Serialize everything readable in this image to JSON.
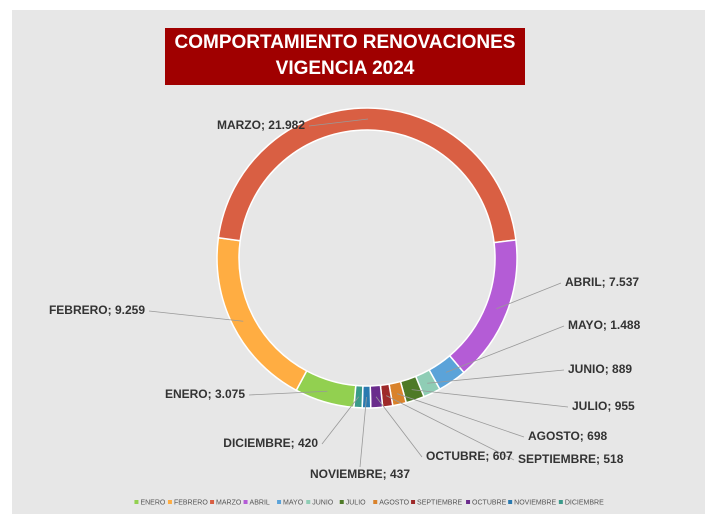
{
  "chart_data": {
    "type": "pie",
    "title_lines": [
      "COMPORTAMIENTO RENOVACIONES",
      "VIGENCIA 2024"
    ],
    "categories": [
      "ENERO",
      "FEBRERO",
      "MARZO",
      "ABRIL",
      "MAYO",
      "JUNIO",
      "JULIO",
      "AGOSTO",
      "SEPTIEMBRE",
      "OCTUBRE",
      "NOVIEMBRE",
      "DICIEMBRE"
    ],
    "values": [
      3075,
      9259,
      21982,
      7537,
      1488,
      889,
      955,
      698,
      518,
      607,
      437,
      420
    ],
    "value_labels": [
      "3.075",
      "9.259",
      "21.982",
      "7.537",
      "1.488",
      "889",
      "955",
      "698",
      "518",
      "607",
      "437",
      "420"
    ],
    "label_separator": "; ",
    "colors": [
      "#92d050",
      "#ffad42",
      "#d95f43",
      "#b45cd6",
      "#5ba3d9",
      "#8fcdb5",
      "#4e7a27",
      "#d9822b",
      "#9e2a2a",
      "#6a2c8c",
      "#2a7ab0",
      "#3a9a8a"
    ],
    "donut": true,
    "legend": "bottom"
  }
}
